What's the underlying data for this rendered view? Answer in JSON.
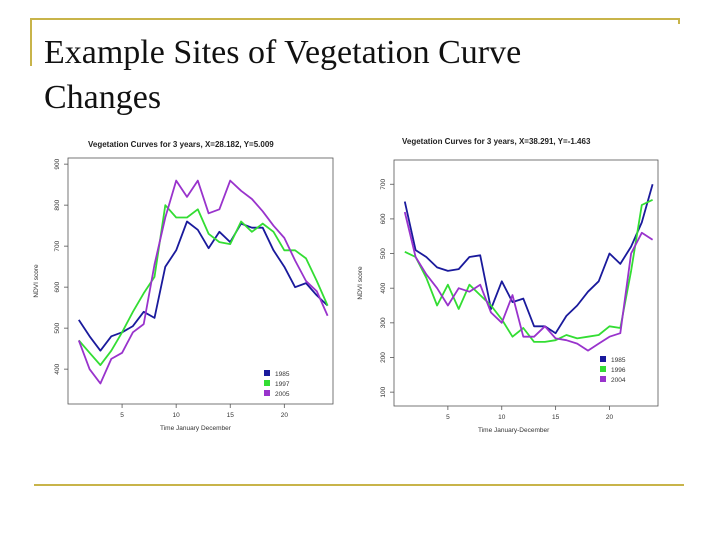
{
  "slide": {
    "title_line1": "Example Sites of Vegetation Curve",
    "title_line2": "Changes"
  },
  "colors": {
    "accent_rule": "#c8b44a"
  },
  "chart_data": [
    {
      "type": "line",
      "title": "Vegetation Curves for 3 years,   X=28.182, Y=5.009",
      "xlabel": "Time January December",
      "ylabel": "NDVI score",
      "xlim": [
        0,
        24.5
      ],
      "ylim": [
        315,
        915
      ],
      "xticks": [
        5,
        10,
        15,
        20
      ],
      "yticks": [
        400,
        500,
        600,
        700,
        800,
        900
      ],
      "legend_position": "bottom-right",
      "series": [
        {
          "name": "1985",
          "color": "#1a1a9c",
          "x": [
            1,
            2,
            3,
            4,
            5,
            6,
            7,
            8,
            9,
            10,
            11,
            12,
            13,
            14,
            15,
            16,
            17,
            18,
            19,
            20,
            21,
            22,
            23,
            24
          ],
          "y": [
            520,
            480,
            445,
            480,
            490,
            505,
            540,
            525,
            650,
            690,
            760,
            740,
            695,
            735,
            710,
            755,
            745,
            745,
            690,
            650,
            600,
            610,
            580,
            555
          ]
        },
        {
          "name": "1997",
          "color": "#33dd33",
          "x": [
            1,
            2,
            3,
            4,
            5,
            6,
            7,
            8,
            9,
            10,
            11,
            12,
            13,
            14,
            15,
            16,
            17,
            18,
            19,
            20,
            21,
            22,
            23,
            24
          ],
          "y": [
            470,
            440,
            410,
            445,
            490,
            540,
            585,
            625,
            800,
            770,
            770,
            790,
            730,
            710,
            705,
            760,
            735,
            755,
            735,
            690,
            690,
            670,
            615,
            555
          ]
        },
        {
          "name": "2005",
          "color": "#9933cc",
          "x": [
            1,
            2,
            3,
            4,
            5,
            6,
            7,
            8,
            9,
            10,
            11,
            12,
            13,
            14,
            15,
            16,
            17,
            18,
            19,
            20,
            21,
            22,
            23,
            24
          ],
          "y": [
            470,
            400,
            365,
            425,
            440,
            490,
            510,
            655,
            770,
            860,
            820,
            860,
            780,
            790,
            860,
            835,
            815,
            785,
            750,
            720,
            665,
            615,
            590,
            530
          ]
        }
      ]
    },
    {
      "type": "line",
      "title": "Vegetation Curves for 3 years,   X=38.291, Y=-1.463",
      "xlabel": "Time January-December",
      "ylabel": "NDVI  score",
      "xlim": [
        0,
        24.5
      ],
      "ylim": [
        60,
        770
      ],
      "xticks": [
        5,
        10,
        15,
        20
      ],
      "yticks": [
        100,
        200,
        300,
        400,
        500,
        600,
        700
      ],
      "legend_position": "bottom-right",
      "series": [
        {
          "name": "1985",
          "color": "#1a1a9c",
          "x": [
            1,
            2,
            3,
            4,
            5,
            6,
            7,
            8,
            9,
            10,
            11,
            12,
            13,
            14,
            15,
            16,
            17,
            18,
            19,
            20,
            21,
            22,
            23,
            24
          ],
          "y": [
            650,
            510,
            490,
            460,
            450,
            455,
            490,
            495,
            340,
            420,
            360,
            370,
            290,
            290,
            270,
            320,
            350,
            390,
            420,
            500,
            470,
            520,
            590,
            700
          ]
        },
        {
          "name": "1996",
          "color": "#33dd33",
          "x": [
            1,
            2,
            3,
            4,
            5,
            6,
            7,
            8,
            9,
            10,
            11,
            12,
            13,
            14,
            15,
            16,
            17,
            18,
            19,
            20,
            21,
            22,
            23,
            24
          ],
          "y": [
            505,
            490,
            430,
            350,
            410,
            340,
            410,
            380,
            350,
            310,
            260,
            285,
            245,
            245,
            250,
            265,
            255,
            260,
            265,
            290,
            285,
            450,
            640,
            655
          ]
        },
        {
          "name": "2004",
          "color": "#9933cc",
          "x": [
            1,
            2,
            3,
            4,
            5,
            6,
            7,
            8,
            9,
            10,
            11,
            12,
            13,
            14,
            15,
            16,
            17,
            18,
            19,
            20,
            21,
            22,
            23,
            24
          ],
          "y": [
            620,
            490,
            440,
            400,
            350,
            400,
            390,
            410,
            330,
            300,
            380,
            260,
            260,
            290,
            255,
            250,
            240,
            220,
            240,
            260,
            270,
            500,
            560,
            540
          ]
        }
      ]
    }
  ]
}
